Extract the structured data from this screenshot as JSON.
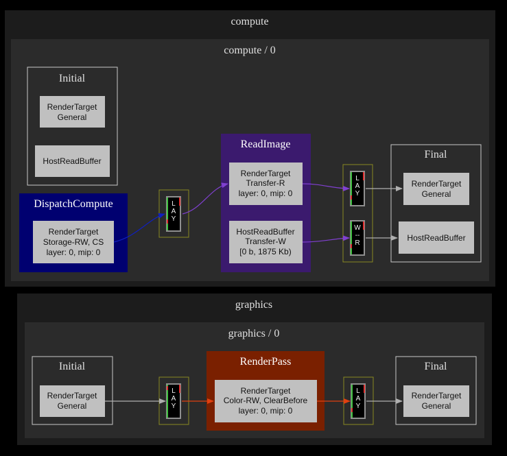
{
  "compute": {
    "title": "compute",
    "sub": {
      "title": "compute / 0",
      "initial": {
        "title": "Initial",
        "nodes": [
          [
            "RenderTarget",
            "General"
          ],
          [
            "HostReadBuffer"
          ]
        ]
      },
      "dispatch": {
        "title": "DispatchCompute",
        "node": [
          "RenderTarget",
          "Storage-RW, CS",
          "layer: 0, mip: 0"
        ]
      },
      "barrier1": {
        "label": "L\nA\nY"
      },
      "readimage": {
        "title": "ReadImage",
        "nodes": [
          [
            "RenderTarget",
            "Transfer-R",
            "layer: 0, mip: 0"
          ],
          [
            "HostReadBuffer",
            "Transfer-W",
            "[0 b, 1875 Kb)"
          ]
        ]
      },
      "barrier2": {
        "labels": [
          "L\nA\nY",
          "W\n--\nR"
        ]
      },
      "final": {
        "title": "Final",
        "nodes": [
          [
            "RenderTarget",
            "General"
          ],
          [
            "HostReadBuffer"
          ]
        ]
      }
    }
  },
  "graphics": {
    "title": "graphics",
    "sub": {
      "title": "graphics / 0",
      "initial": {
        "title": "Initial",
        "node": [
          "RenderTarget",
          "General"
        ]
      },
      "barrier1": {
        "label": "L\nA\nY"
      },
      "renderpass": {
        "title": "RenderPass",
        "node": [
          "RenderTarget",
          "Color-RW, ClearBefore",
          "layer: 0, mip: 0"
        ]
      },
      "barrier2": {
        "label": "L\nA\nY"
      },
      "final": {
        "title": "Final",
        "node": [
          "RenderTarget",
          "General"
        ]
      }
    }
  },
  "colors": {
    "background": "#000000",
    "cluster_outer": "#1c1c1c",
    "cluster_inner": "#2b2b2b",
    "node_fill": "#c0c0c0",
    "dispatch_fill": "#000070",
    "readimage_fill": "#3b1a6e",
    "renderpass_fill": "#7a2000",
    "barrier_border": "#8a8a20",
    "edge_blue": "#1020c0",
    "edge_purple": "#8040d0",
    "edge_orange": "#e04010",
    "edge_gray": "#b0b0b0"
  }
}
